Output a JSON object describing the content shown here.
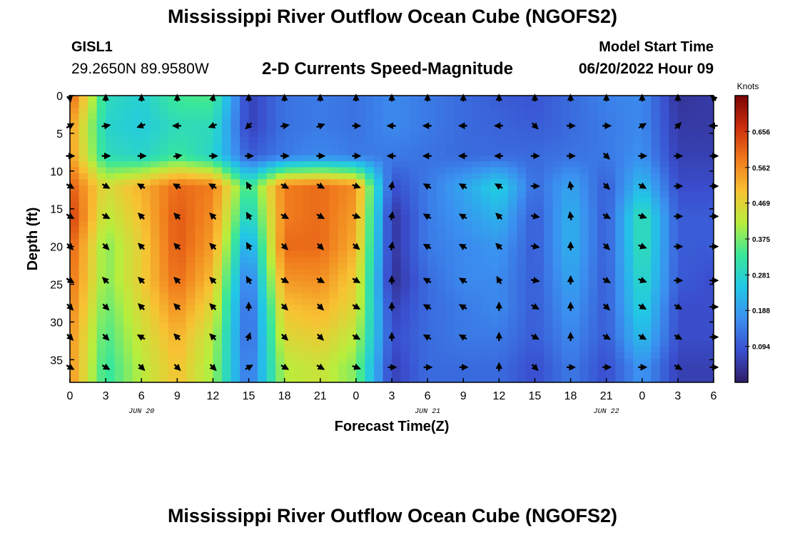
{
  "page": {
    "title": "Mississippi River Outflow Ocean Cube (NGOFS2)",
    "repeat_title": "Mississippi River Outflow Ocean Cube (NGOFS2)"
  },
  "station": {
    "id": "GISL1",
    "coords": "29.2650N  89.9580W"
  },
  "model_start": {
    "label": "Model Start Time",
    "value": "06/20/2022 Hour 09"
  },
  "colors": {
    "colormap": [
      "#2f1c66",
      "#3a4fcf",
      "#3b8ff0",
      "#22c7e6",
      "#39e79a",
      "#b8ee3c",
      "#f8c233",
      "#f07a1c",
      "#cc2d0c",
      "#7a0404"
    ],
    "arrow": "#000000"
  },
  "chart_data": {
    "type": "heatmap",
    "title": "2-D Currents Speed-Magnitude",
    "xlabel": "Forecast Time(Z)",
    "ylabel": "Depth (ft)",
    "x_tick_labels": [
      "0",
      "3",
      "6",
      "9",
      "12",
      "15",
      "18",
      "21",
      "0",
      "3",
      "6",
      "9",
      "12",
      "15",
      "18",
      "21",
      "0",
      "3",
      "6"
    ],
    "date_labels": [
      {
        "text": "JUN 20",
        "hour_index": 6
      },
      {
        "text": "JUN 21",
        "hour_index": 30
      },
      {
        "text": "JUN 22",
        "hour_index": 45
      }
    ],
    "x_range_hours": [
      0,
      54
    ],
    "y_ticks": [
      0,
      5,
      10,
      15,
      20,
      25,
      30,
      35
    ],
    "y_range_ft": [
      0,
      38
    ],
    "colorbar": {
      "label": "Knots",
      "ticks": [
        0.094,
        0.188,
        0.281,
        0.375,
        0.469,
        0.562,
        0.656
      ],
      "range": [
        0.0,
        0.75
      ]
    },
    "depths_ft": [
      4,
      8,
      12,
      16,
      20,
      24.5,
      28,
      32,
      36
    ],
    "hours": [
      0,
      3,
      6,
      9,
      12,
      15,
      18,
      21,
      24,
      27,
      30,
      33,
      36,
      39,
      42,
      45,
      48,
      51,
      54
    ],
    "speed_surface": [
      0.62,
      0.3,
      0.27,
      0.34,
      0.35,
      0.06,
      0.13,
      0.14,
      0.13,
      0.16,
      0.14,
      0.12,
      0.1,
      0.09,
      0.12,
      0.15,
      0.16,
      0.04,
      0.05
    ],
    "speed_grid": [
      [
        0.55,
        0.28,
        0.26,
        0.3,
        0.3,
        0.06,
        0.13,
        0.14,
        0.13,
        0.16,
        0.14,
        0.12,
        0.11,
        0.1,
        0.12,
        0.14,
        0.16,
        0.05,
        0.05
      ],
      [
        0.55,
        0.3,
        0.28,
        0.33,
        0.28,
        0.1,
        0.14,
        0.16,
        0.14,
        0.14,
        0.13,
        0.12,
        0.12,
        0.12,
        0.13,
        0.14,
        0.17,
        0.06,
        0.06
      ],
      [
        0.62,
        0.45,
        0.52,
        0.6,
        0.58,
        0.32,
        0.58,
        0.6,
        0.56,
        0.08,
        0.14,
        0.2,
        0.27,
        0.12,
        0.2,
        0.1,
        0.24,
        0.08,
        0.08
      ],
      [
        0.66,
        0.42,
        0.5,
        0.62,
        0.56,
        0.26,
        0.58,
        0.6,
        0.54,
        0.04,
        0.14,
        0.18,
        0.22,
        0.1,
        0.22,
        0.1,
        0.32,
        0.1,
        0.1
      ],
      [
        0.62,
        0.38,
        0.48,
        0.62,
        0.54,
        0.18,
        0.6,
        0.6,
        0.52,
        0.04,
        0.14,
        0.16,
        0.18,
        0.1,
        0.22,
        0.1,
        0.32,
        0.1,
        0.1
      ],
      [
        0.6,
        0.38,
        0.48,
        0.6,
        0.5,
        0.12,
        0.55,
        0.56,
        0.48,
        0.03,
        0.12,
        0.16,
        0.16,
        0.1,
        0.2,
        0.1,
        0.3,
        0.1,
        0.08
      ],
      [
        0.58,
        0.36,
        0.46,
        0.56,
        0.46,
        0.1,
        0.5,
        0.52,
        0.46,
        0.06,
        0.12,
        0.14,
        0.16,
        0.1,
        0.18,
        0.1,
        0.28,
        0.08,
        0.08
      ],
      [
        0.56,
        0.34,
        0.44,
        0.52,
        0.42,
        0.1,
        0.46,
        0.48,
        0.42,
        0.08,
        0.12,
        0.14,
        0.14,
        0.1,
        0.16,
        0.1,
        0.24,
        0.08,
        0.08
      ],
      [
        0.56,
        0.32,
        0.42,
        0.5,
        0.4,
        0.12,
        0.42,
        0.44,
        0.38,
        0.06,
        0.12,
        0.12,
        0.12,
        0.08,
        0.14,
        0.08,
        0.18,
        0.06,
        0.06
      ]
    ],
    "dir_surface_deg": [
      170,
      360,
      360,
      360,
      10,
      0,
      0,
      0,
      0,
      0,
      0,
      0,
      0,
      0,
      0,
      0,
      0,
      0,
      315
    ],
    "dir_grid_deg": [
      [
        60,
        80,
        250,
        270,
        250,
        225,
        80,
        70,
        90,
        270,
        270,
        270,
        270,
        135,
        90,
        90,
        60,
        45,
        270
      ],
      [
        90,
        90,
        90,
        80,
        90,
        90,
        90,
        90,
        90,
        270,
        270,
        270,
        270,
        90,
        90,
        135,
        90,
        90,
        90
      ],
      [
        120,
        120,
        300,
        300,
        300,
        330,
        120,
        120,
        110,
        10,
        300,
        300,
        300,
        90,
        350,
        135,
        120,
        90,
        90
      ],
      [
        120,
        120,
        315,
        315,
        315,
        330,
        120,
        120,
        110,
        10,
        300,
        300,
        315,
        100,
        350,
        120,
        110,
        90,
        90
      ],
      [
        135,
        135,
        315,
        315,
        315,
        330,
        135,
        135,
        130,
        10,
        300,
        300,
        315,
        100,
        0,
        135,
        110,
        90,
        90
      ],
      [
        120,
        315,
        315,
        315,
        315,
        330,
        120,
        120,
        120,
        0,
        300,
        300,
        330,
        100,
        0,
        120,
        110,
        90,
        90
      ],
      [
        135,
        135,
        315,
        315,
        315,
        0,
        135,
        135,
        120,
        0,
        300,
        300,
        0,
        120,
        0,
        135,
        120,
        120,
        90
      ],
      [
        135,
        135,
        300,
        315,
        315,
        20,
        135,
        135,
        120,
        0,
        300,
        300,
        0,
        120,
        0,
        120,
        120,
        120,
        90
      ],
      [
        120,
        120,
        135,
        135,
        135,
        60,
        120,
        120,
        110,
        90,
        90,
        90,
        0,
        135,
        90,
        90,
        90,
        120,
        90
      ]
    ]
  }
}
